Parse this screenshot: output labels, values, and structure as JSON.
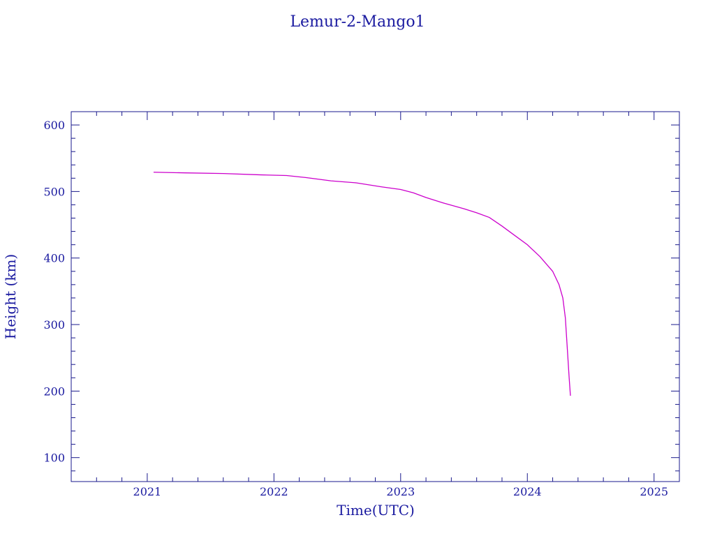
{
  "colors": {
    "axis": "#1a1a8c",
    "text": "#1a1aa0",
    "series": "#cc00cc",
    "background": "#ffffff"
  },
  "chart_data": {
    "type": "line",
    "title": "Lemur-2-Mango1",
    "xlabel": "Time(UTC)",
    "ylabel": "Height (km)",
    "xlim": [
      2020.4,
      2025.2
    ],
    "ylim": [
      64,
      620
    ],
    "grid": false,
    "x_ticks": [
      2021,
      2022,
      2023,
      2024,
      2025
    ],
    "x_tick_labels": [
      "2021",
      "2022",
      "2023",
      "2024",
      "2025"
    ],
    "y_ticks": [
      100,
      200,
      300,
      400,
      500,
      600
    ],
    "y_tick_labels": [
      "100",
      "200",
      "300",
      "400",
      "500",
      "600"
    ],
    "series": [
      {
        "points": [
          [
            2021.05,
            529
          ],
          [
            2021.3,
            528
          ],
          [
            2021.6,
            527
          ],
          [
            2021.9,
            525
          ],
          [
            2022.1,
            524
          ],
          [
            2022.25,
            521
          ],
          [
            2022.45,
            516
          ],
          [
            2022.65,
            513
          ],
          [
            2022.85,
            507
          ],
          [
            2023.0,
            503
          ],
          [
            2023.1,
            498
          ],
          [
            2023.2,
            491
          ],
          [
            2023.35,
            482
          ],
          [
            2023.5,
            474
          ],
          [
            2023.6,
            468
          ],
          [
            2023.7,
            461
          ],
          [
            2023.8,
            448
          ],
          [
            2023.9,
            434
          ],
          [
            2024.0,
            420
          ],
          [
            2024.1,
            402
          ],
          [
            2024.2,
            380
          ],
          [
            2024.25,
            360
          ],
          [
            2024.28,
            340
          ],
          [
            2024.3,
            310
          ],
          [
            2024.31,
            280
          ],
          [
            2024.32,
            250
          ],
          [
            2024.33,
            220
          ],
          [
            2024.34,
            193
          ]
        ]
      }
    ]
  }
}
